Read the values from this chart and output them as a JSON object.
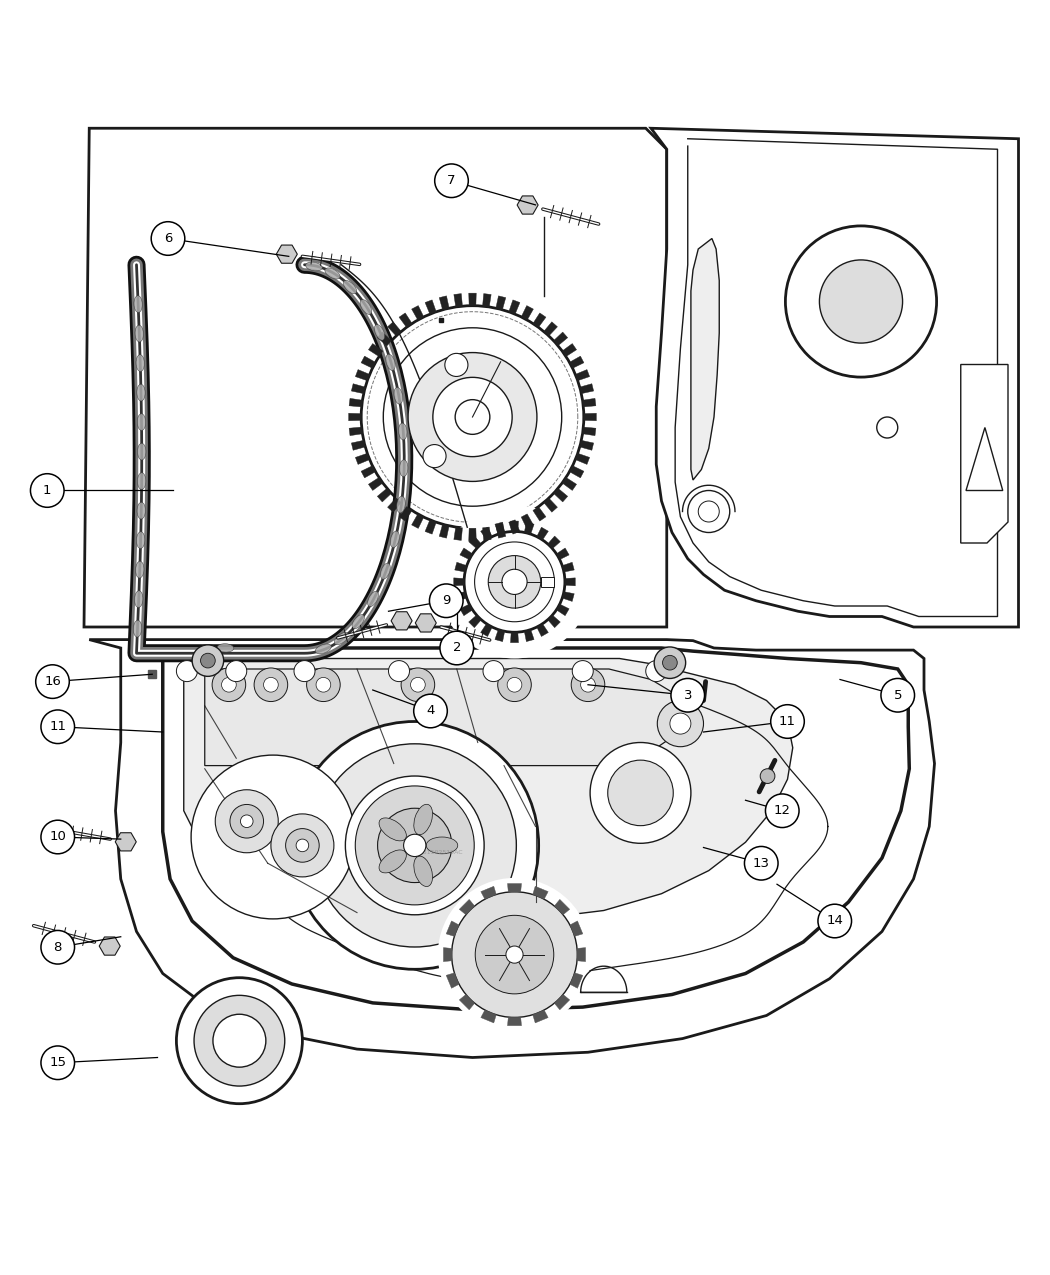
{
  "bg_color": "#ffffff",
  "lc": "#1a1a1a",
  "fig_w": 10.5,
  "fig_h": 12.75,
  "dpi": 100,
  "callout_r": 0.016,
  "callout_fontsize": 9.5,
  "top_callouts": [
    [
      1,
      0.045,
      0.64,
      0.165,
      0.64
    ],
    [
      2,
      0.435,
      0.49,
      0.435,
      0.53
    ],
    [
      3,
      0.655,
      0.445,
      0.56,
      0.455
    ],
    [
      4,
      0.41,
      0.43,
      0.355,
      0.45
    ],
    [
      5,
      0.855,
      0.445,
      0.8,
      0.46
    ],
    [
      6,
      0.16,
      0.88,
      0.275,
      0.863
    ],
    [
      7,
      0.43,
      0.935,
      0.51,
      0.912
    ],
    [
      16,
      0.05,
      0.458,
      0.145,
      0.465
    ]
  ],
  "bot_callouts": [
    [
      8,
      0.055,
      0.205,
      0.115,
      0.215
    ],
    [
      9,
      0.425,
      0.535,
      0.37,
      0.525
    ],
    [
      10,
      0.055,
      0.31,
      0.115,
      0.308
    ],
    [
      11,
      0.055,
      0.415,
      0.155,
      0.41
    ],
    [
      11,
      0.75,
      0.42,
      0.67,
      0.41
    ],
    [
      12,
      0.745,
      0.335,
      0.71,
      0.345
    ],
    [
      13,
      0.725,
      0.285,
      0.67,
      0.3
    ],
    [
      14,
      0.795,
      0.23,
      0.74,
      0.265
    ],
    [
      15,
      0.055,
      0.095,
      0.15,
      0.1
    ]
  ]
}
